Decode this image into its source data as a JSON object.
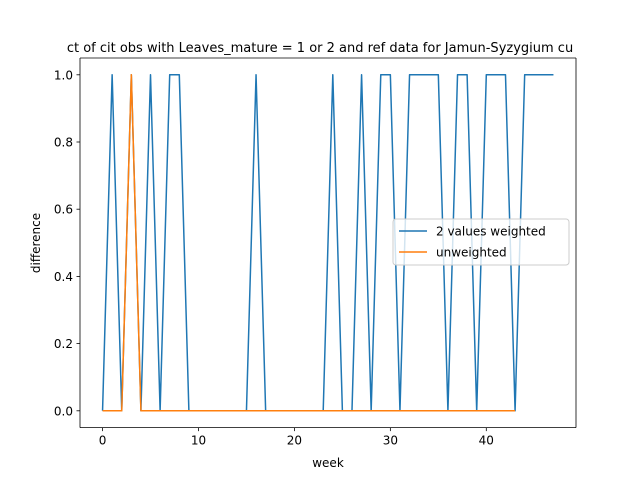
{
  "chart_data": {
    "type": "line",
    "title": "ct of cit obs with Leaves_mature = 1 or 2 and ref data for Jamun-Syzygium cu",
    "xlabel": "week",
    "ylabel": "difference",
    "xlim": [
      -2.35,
      49.35
    ],
    "ylim": [
      -0.05,
      1.05
    ],
    "x_ticks": [
      0,
      10,
      20,
      30,
      40
    ],
    "x_tick_labels": [
      "0",
      "10",
      "20",
      "30",
      "40"
    ],
    "y_ticks": [
      0.0,
      0.2,
      0.4,
      0.6,
      0.8,
      1.0
    ],
    "y_tick_labels": [
      "0.0",
      "0.2",
      "0.4",
      "0.6",
      "0.8",
      "1.0"
    ],
    "grid": false,
    "legend_position": "center-right",
    "series": [
      {
        "name": "2 values weighted",
        "color": "#1f77b4",
        "x": [
          0,
          1,
          2,
          3,
          4,
          5,
          6,
          7,
          8,
          9,
          10,
          11,
          12,
          13,
          14,
          15,
          16,
          17,
          18,
          19,
          20,
          21,
          22,
          23,
          24,
          25,
          26,
          27,
          28,
          29,
          30,
          31,
          32,
          33,
          34,
          35,
          36,
          37,
          38,
          39,
          40,
          41,
          42,
          43,
          44,
          45,
          46,
          47
        ],
        "y": [
          0,
          1,
          0,
          1,
          0,
          1,
          0,
          1,
          1,
          0,
          0,
          0,
          0,
          0,
          0,
          0,
          1,
          0,
          0,
          0,
          0,
          0,
          0,
          0,
          1,
          0,
          0,
          1,
          0,
          1,
          1,
          0,
          1,
          1,
          1,
          1,
          0,
          1,
          1,
          0,
          1,
          1,
          1,
          0,
          1,
          1,
          1,
          1
        ]
      },
      {
        "name": "unweighted",
        "color": "#ff7f0e",
        "x": [
          0,
          1,
          2,
          3,
          4,
          5,
          6,
          7,
          8,
          9,
          10,
          11,
          12,
          13,
          14,
          15,
          16,
          17,
          18,
          19,
          20,
          21,
          22,
          23,
          24,
          25,
          26,
          27,
          28,
          29,
          30,
          31,
          32,
          33,
          34,
          35,
          36,
          37,
          38,
          39,
          40,
          41,
          42,
          43
        ],
        "y": [
          0,
          0,
          0,
          1,
          0,
          0,
          0,
          0,
          0,
          0,
          0,
          0,
          0,
          0,
          0,
          0,
          0,
          0,
          0,
          0,
          0,
          0,
          0,
          0,
          0,
          0,
          0,
          0,
          0,
          0,
          0,
          0,
          0,
          0,
          0,
          0,
          0,
          0,
          0,
          0,
          0,
          0,
          0,
          0
        ]
      }
    ]
  }
}
